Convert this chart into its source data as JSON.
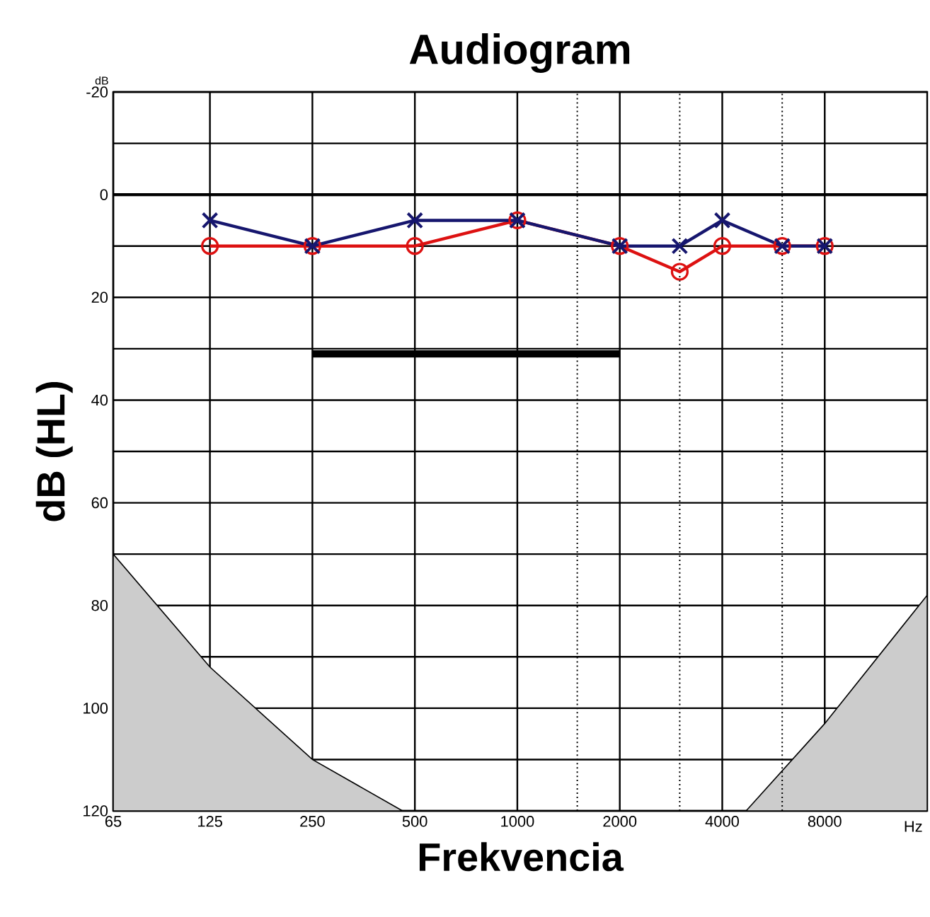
{
  "chart_data": {
    "type": "line",
    "title": "Audiogram",
    "xlabel": "Frekvencia",
    "ylabel": "dB (HL)",
    "annotations": [
      "dB",
      "Hz"
    ],
    "log": "x",
    "xlim": [
      65,
      16000
    ],
    "xticks": [
      65,
      125,
      250,
      500,
      1000,
      2000,
      4000,
      8000
    ],
    "ylim": [
      120,
      -20
    ],
    "yticks": [
      -20,
      {
        "value": -10,
        "label": null
      },
      0,
      {
        "value": 10,
        "label": null
      },
      20,
      {
        "value": 30,
        "label": null
      },
      40,
      {
        "value": 50,
        "label": null
      },
      60,
      {
        "value": 70,
        "label": null
      },
      80,
      {
        "value": 90,
        "label": null
      },
      100,
      {
        "value": 110,
        "label": null
      },
      120
    ],
    "grid": true,
    "ref_lines": [
      {
        "axis": "x",
        "value": 1500,
        "line_style": "dotted",
        "color": "#000000"
      },
      {
        "axis": "x",
        "value": 3000,
        "line_style": "dotted",
        "color": "#000000"
      },
      {
        "axis": "x",
        "value": 6000,
        "line_style": "dotted",
        "color": "#000000"
      },
      {
        "axis": "y",
        "value": 0,
        "line_style": "solid",
        "color": "#000000"
      }
    ],
    "series": [
      {
        "color": "#dd1111",
        "marker": "circle",
        "x": [
          125,
          250,
          500,
          1000,
          2000,
          3000,
          4000,
          6000,
          8000
        ],
        "values": [
          10,
          10,
          10,
          5,
          10,
          15,
          10,
          10,
          10
        ]
      },
      {
        "color": "#16166e",
        "marker": "cross",
        "x": [
          125,
          250,
          500,
          1000,
          2000,
          3000,
          4000,
          6000,
          8000
        ],
        "values": [
          5,
          10,
          5,
          5,
          10,
          10,
          5,
          10,
          10
        ]
      },
      {
        "color": "#000000",
        "marker": "none",
        "x": [
          250,
          2000
        ],
        "values": [
          31,
          31
        ]
      },
      {
        "type": "area",
        "color": "#cccccc",
        "x": [
          65,
          65,
          125,
          250,
          460
        ],
        "values": [
          120,
          70,
          92,
          110,
          120
        ]
      },
      {
        "type": "area",
        "color": "#cccccc",
        "x": [
          4700,
          8000,
          16000,
          16000
        ],
        "values": [
          120,
          103,
          78,
          120
        ]
      }
    ]
  }
}
